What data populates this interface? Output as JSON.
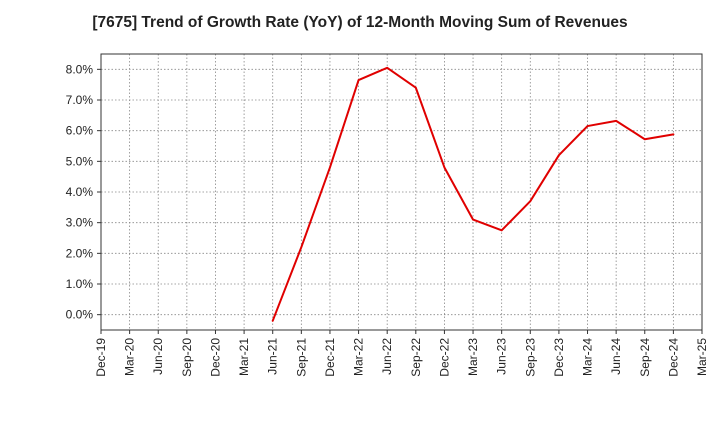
{
  "chart_data": {
    "type": "line",
    "title": "[7675]  Trend of Growth Rate (YoY) of 12-Month Moving Sum of Revenues",
    "xlabel": "",
    "ylabel": "",
    "x_ticks": [
      "Dec-19",
      "Mar-20",
      "Jun-20",
      "Sep-20",
      "Dec-20",
      "Mar-21",
      "Jun-21",
      "Sep-21",
      "Dec-21",
      "Mar-22",
      "Jun-22",
      "Sep-22",
      "Dec-22",
      "Mar-23",
      "Jun-23",
      "Sep-23",
      "Dec-23",
      "Mar-24",
      "Jun-24",
      "Sep-24",
      "Dec-24",
      "Mar-25"
    ],
    "y_ticks": [
      "0.0%",
      "1.0%",
      "2.0%",
      "3.0%",
      "4.0%",
      "5.0%",
      "6.0%",
      "7.0%",
      "8.0%"
    ],
    "ylim": [
      -0.5,
      8.5
    ],
    "grid": true,
    "series": [
      {
        "color": "#e00000",
        "x": [
          "Jun-21",
          "Sep-21",
          "Dec-21",
          "Mar-22",
          "Jun-22",
          "Sep-22",
          "Dec-22",
          "Mar-23",
          "Jun-23",
          "Sep-23",
          "Dec-23",
          "Mar-24",
          "Jun-24",
          "Sep-24",
          "Dec-24"
        ],
        "values": [
          -0.2,
          2.2,
          4.8,
          7.65,
          8.05,
          7.4,
          4.8,
          3.1,
          2.75,
          3.7,
          5.2,
          6.15,
          6.32,
          5.72,
          5.88
        ]
      }
    ]
  }
}
